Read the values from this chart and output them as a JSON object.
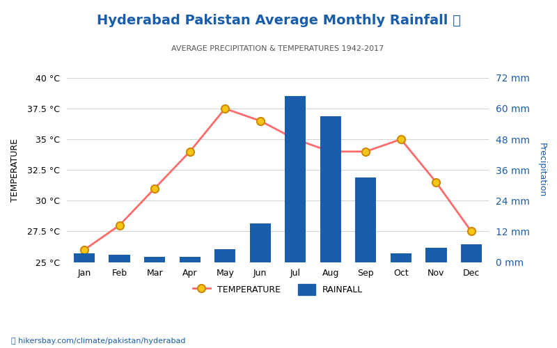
{
  "months": [
    "Jan",
    "Feb",
    "Mar",
    "Apr",
    "May",
    "Jun",
    "Jul",
    "Aug",
    "Sep",
    "Oct",
    "Nov",
    "Dec"
  ],
  "temperature": [
    26.0,
    28.0,
    31.0,
    34.0,
    37.5,
    36.5,
    35.0,
    34.0,
    34.0,
    35.0,
    31.5,
    27.5
  ],
  "rainfall_mm": [
    3.5,
    3.0,
    2.0,
    2.0,
    5.0,
    15.0,
    65.0,
    57.0,
    33.0,
    3.5,
    5.5,
    7.0
  ],
  "title": "Hyderabad Pakistan Average Monthly Rainfall 🌧",
  "subtitle": "AVERAGE PRECIPITATION & TEMPERATURES 1942-2017",
  "ylabel_left": "TEMPERATURE",
  "ylabel_right": "Precipitation",
  "temp_color": "#ff6b6b",
  "bar_color": "#1a5dab",
  "marker_color": "#f5c518",
  "marker_edge": "#cc8800",
  "temp_ylim": [
    25,
    40
  ],
  "rain_ylim": [
    0,
    72
  ],
  "temp_yticks": [
    25,
    27.5,
    30,
    32.5,
    35,
    37.5,
    40
  ],
  "rain_yticks": [
    0,
    12,
    24,
    36,
    48,
    60,
    72
  ],
  "title_color": "#1a5dab",
  "subtitle_color": "#555555",
  "axis_label_color": "#1a5dab",
  "footer_text": "⌖ hikersbay.com/climate/pakistan/hyderabad",
  "footer_color": "#1a5dab"
}
